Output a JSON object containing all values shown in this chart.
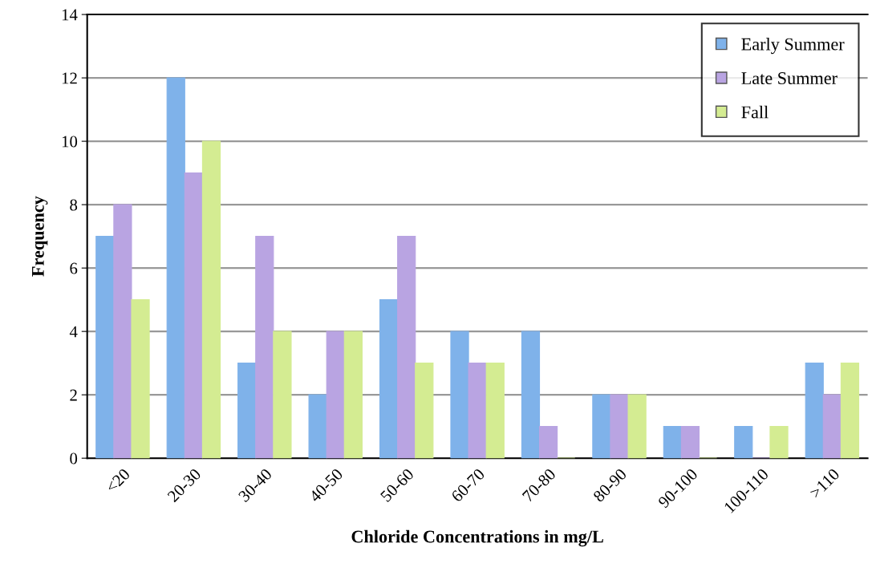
{
  "chart_data": {
    "type": "bar",
    "xlabel": "Chloride Concentrations in mg/L",
    "ylabel": "Frequency",
    "categories": [
      "<20",
      "20-30",
      "30-40",
      "40-50",
      "50-60",
      "60-70",
      "70-80",
      "80-90",
      "90-100",
      "100-110",
      ">110"
    ],
    "series": [
      {
        "name": "Early Summer",
        "color": "#7fb2ea",
        "values": [
          7,
          12,
          3,
          2,
          5,
          4,
          4,
          2,
          1,
          1,
          3
        ]
      },
      {
        "name": "Late Summer",
        "color": "#b9a4e2",
        "values": [
          8,
          9,
          7,
          4,
          7,
          3,
          1,
          2,
          1,
          0,
          2
        ]
      },
      {
        "name": "Fall",
        "color": "#d4ec92",
        "values": [
          5,
          10,
          4,
          4,
          3,
          3,
          0,
          2,
          0,
          1,
          3
        ]
      }
    ],
    "ylim": [
      0,
      14
    ],
    "yticks": [
      0,
      2,
      4,
      6,
      8,
      10,
      12,
      14
    ],
    "grid": "y",
    "legend": "top right"
  }
}
